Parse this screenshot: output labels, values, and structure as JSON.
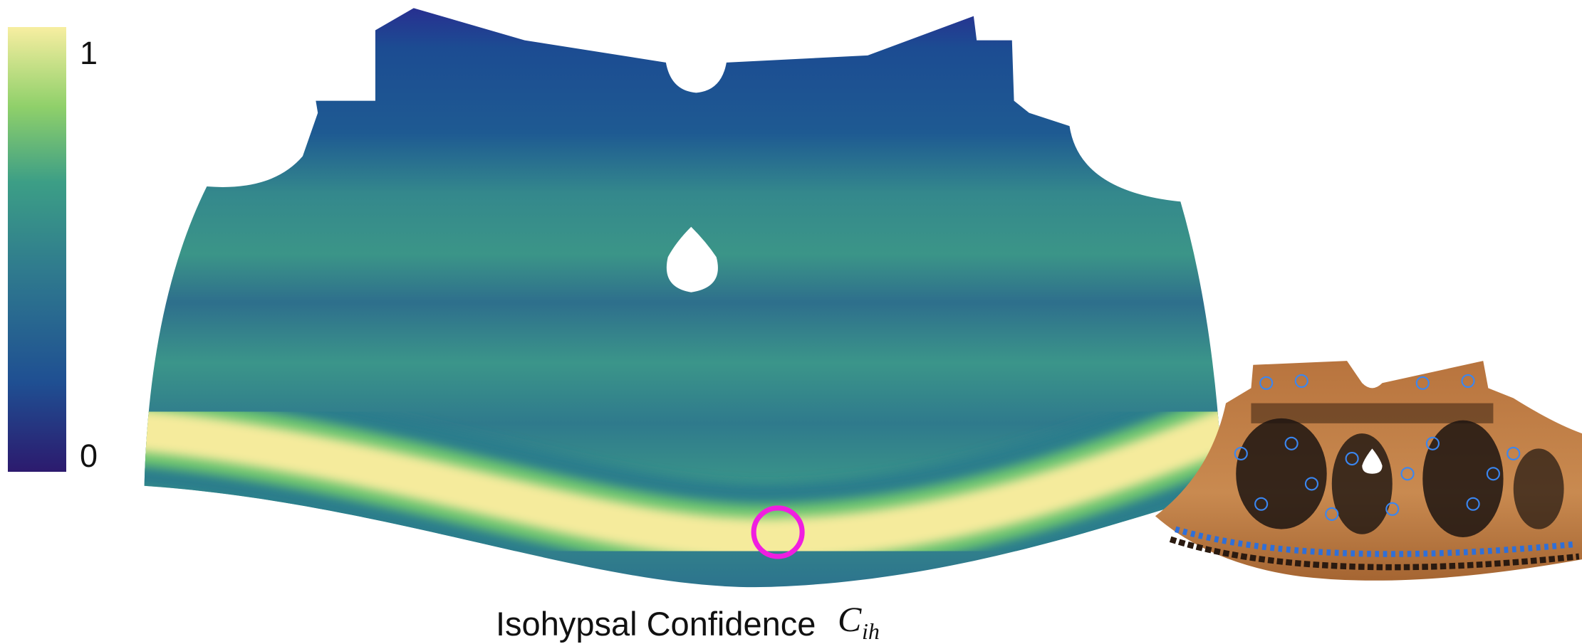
{
  "colorbar": {
    "max_label": "1",
    "min_label": "0"
  },
  "caption": {
    "text": "Isohypsal Confidence",
    "symbol": "C",
    "subscript": "ih"
  }
}
